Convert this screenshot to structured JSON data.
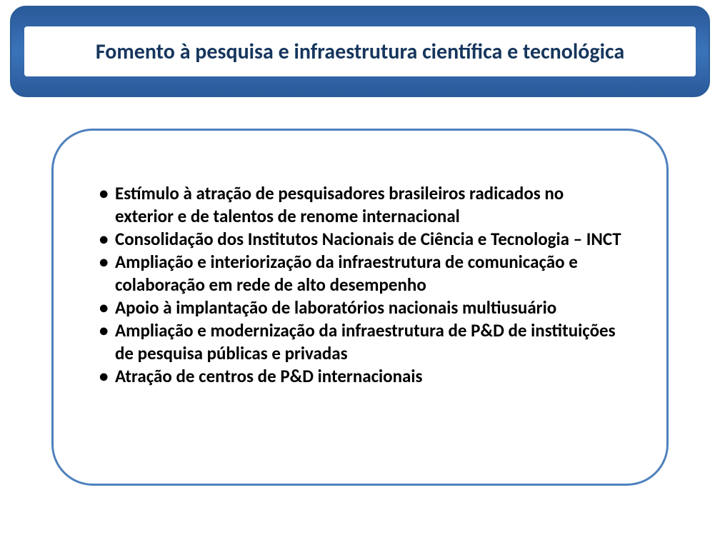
{
  "slide": {
    "title": "Fomento à pesquisa e infraestrutura científica e tecnológica",
    "title_color": "#16365d",
    "title_fontsize": 30,
    "banner_bg_gradient_top": "#2a5a9a",
    "banner_bg_gradient_mid": "#3b73b9",
    "banner_border_color": "#2b5d99",
    "banner_border_radius": 22,
    "content_border_color": "#4f81bd",
    "content_border_radius": 58,
    "content_border_width": 3,
    "bullet_color": "#000000",
    "bullet_fontsize": 25,
    "bullet_fontweight": 700,
    "bullets": [
      "Estímulo à atração de pesquisadores brasileiros radicados no exterior e de talentos de renome internacional",
      "Consolidação dos Institutos Nacionais de Ciência e Tecnologia – INCT",
      "Ampliação e interiorização da infraestrutura de comunicação e colaboração em rede de alto desempenho",
      "Apoio à implantação de laboratórios nacionais multiusuário",
      "Ampliação e modernização da infraestrutura de P&D de instituições de pesquisa públicas e privadas",
      "Atração de centros de P&D internacionais"
    ]
  }
}
